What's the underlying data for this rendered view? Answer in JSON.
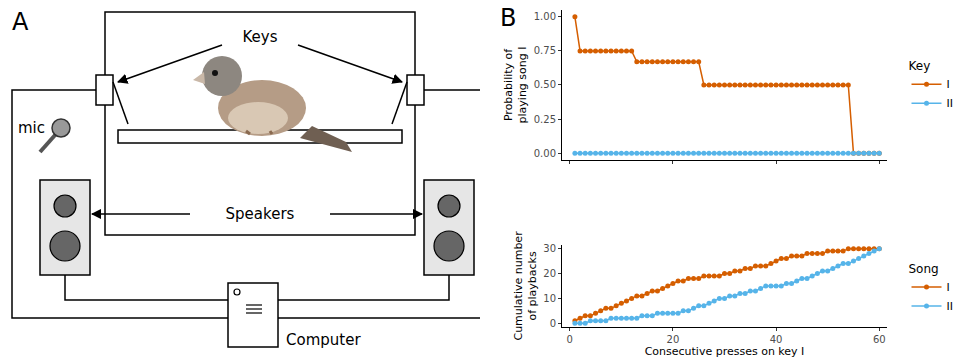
{
  "panel_labels": [
    "A",
    "B"
  ],
  "diagram": {
    "keys": "Keys",
    "mic": "mic",
    "speakers": "Speakers",
    "computer": "Computer"
  },
  "chart_data": [
    {
      "type": "line",
      "y_label": "Probability of\nplaying song I",
      "legend_title": "Key",
      "legend": "right",
      "grid": false,
      "tick_labels": "y",
      "marker": "circle",
      "line_style": "solid",
      "xlim": [
        -1.5,
        61.5
      ],
      "xticks": [
        0,
        20,
        40,
        60
      ],
      "ylim": [
        -0.05,
        1.05
      ],
      "yticks": [
        {
          "value": 0,
          "label": "0.00"
        },
        0.25,
        {
          "value": 0.5,
          "label": "0.50"
        },
        0.75,
        {
          "value": 1,
          "label": "1.00"
        }
      ],
      "x": [
        1,
        2,
        3,
        4,
        5,
        6,
        7,
        8,
        9,
        10,
        11,
        12,
        13,
        14,
        15,
        16,
        17,
        18,
        19,
        20,
        21,
        22,
        23,
        24,
        25,
        26,
        27,
        28,
        29,
        30,
        31,
        32,
        33,
        34,
        35,
        36,
        37,
        38,
        39,
        40,
        41,
        42,
        43,
        44,
        45,
        46,
        47,
        48,
        49,
        50,
        51,
        52,
        53,
        54,
        55,
        56,
        57,
        58,
        59,
        60
      ],
      "series": [
        {
          "name": "I",
          "color": "#D55E00",
          "values": [
            1,
            0.75,
            0.75,
            0.75,
            0.75,
            0.75,
            0.75,
            0.75,
            0.75,
            0.75,
            0.75,
            0.75,
            0.67,
            0.67,
            0.67,
            0.67,
            0.67,
            0.67,
            0.67,
            0.67,
            0.67,
            0.67,
            0.67,
            0.67,
            0.67,
            0.5,
            0.5,
            0.5,
            0.5,
            0.5,
            0.5,
            0.5,
            0.5,
            0.5,
            0.5,
            0.5,
            0.5,
            0.5,
            0.5,
            0.5,
            0.5,
            0.5,
            0.5,
            0.5,
            0.5,
            0.5,
            0.5,
            0.5,
            0.5,
            0.5,
            0.5,
            0.5,
            0.5,
            0.5,
            0,
            0,
            0,
            0,
            0,
            0
          ]
        },
        {
          "name": "II",
          "color": "#56B4E9",
          "values": [
            0,
            0,
            0,
            0,
            0,
            0,
            0,
            0,
            0,
            0,
            0,
            0,
            0,
            0,
            0,
            0,
            0,
            0,
            0,
            0,
            0,
            0,
            0,
            0,
            0,
            0,
            0,
            0,
            0,
            0,
            0,
            0,
            0,
            0,
            0,
            0,
            0,
            0,
            0,
            0,
            0,
            0,
            0,
            0,
            0,
            0,
            0,
            0,
            0,
            0,
            0,
            0,
            0,
            0,
            0,
            0,
            0,
            0,
            0,
            0
          ]
        }
      ]
    },
    {
      "type": "line",
      "x_label": "Consecutive presses on key I",
      "y_label": "Cumulative number\nof playbacks",
      "legend_title": "Song",
      "legend": "right",
      "grid": false,
      "marker": "circle",
      "line_style": "solid",
      "xlim": [
        -1.5,
        61.5
      ],
      "xticks": [
        0,
        20,
        40,
        60
      ],
      "ylim": [
        -1.5,
        31.5
      ],
      "yticks": [
        0,
        10,
        20,
        30
      ],
      "x": [
        1,
        2,
        3,
        4,
        5,
        6,
        7,
        8,
        9,
        10,
        11,
        12,
        13,
        14,
        15,
        16,
        17,
        18,
        19,
        20,
        21,
        22,
        23,
        24,
        25,
        26,
        27,
        28,
        29,
        30,
        31,
        32,
        33,
        34,
        35,
        36,
        37,
        38,
        39,
        40,
        41,
        42,
        43,
        44,
        45,
        46,
        47,
        48,
        49,
        50,
        51,
        52,
        53,
        54,
        55,
        56,
        57,
        58,
        59,
        60
      ],
      "series": [
        {
          "name": "I",
          "color": "#D55E00",
          "values": [
            1,
            2,
            3,
            3,
            4,
            5,
            6,
            6,
            7,
            8,
            9,
            10,
            11,
            11,
            12,
            13,
            13,
            14,
            15,
            16,
            17,
            17,
            18,
            18,
            18,
            19,
            19,
            19,
            19,
            20,
            20,
            21,
            21,
            22,
            22,
            23,
            23,
            23,
            24,
            25,
            26,
            26,
            27,
            27,
            27,
            28,
            28,
            28,
            28,
            29,
            29,
            29,
            29,
            30,
            30,
            30,
            30,
            30,
            30,
            30
          ]
        },
        {
          "name": "II",
          "color": "#56B4E9",
          "values": [
            0,
            0,
            0,
            1,
            1,
            1,
            1,
            2,
            2,
            2,
            2,
            2,
            2,
            3,
            3,
            3,
            4,
            4,
            4,
            4,
            4,
            5,
            5,
            6,
            7,
            7,
            8,
            9,
            10,
            10,
            11,
            11,
            12,
            12,
            13,
            13,
            14,
            15,
            15,
            15,
            15,
            16,
            16,
            17,
            18,
            18,
            19,
            20,
            21,
            21,
            22,
            23,
            24,
            24,
            25,
            26,
            27,
            28,
            29,
            30
          ]
        }
      ]
    }
  ]
}
